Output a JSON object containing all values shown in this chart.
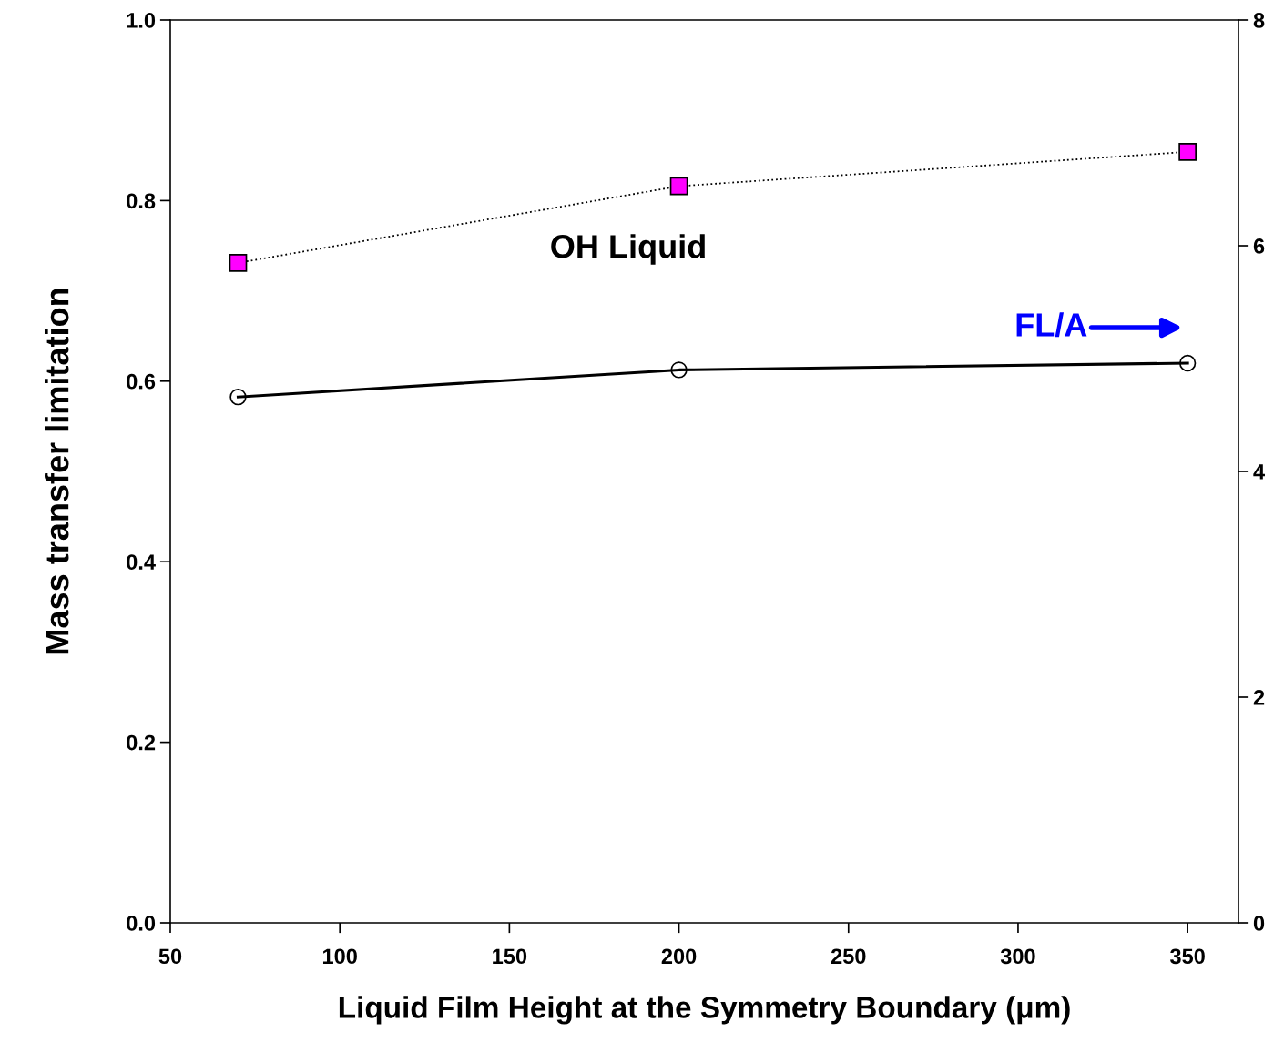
{
  "chart_data": {
    "type": "line",
    "xlabel": "Liquid Film Height at the Symmetry Boundary (μm)",
    "ylabel": "Mass transfer limitation",
    "x": [
      70,
      200,
      350
    ],
    "series": [
      {
        "name": "OH Liquid",
        "color": "#ff00ff",
        "marker": "square",
        "line_style": "dotted",
        "values": [
          0.731,
          0.816,
          0.854
        ]
      },
      {
        "name": "FL/A",
        "color": "#000000",
        "marker": "circle",
        "line_style": "solid",
        "axis": "y2",
        "values": [
          4.66,
          4.9,
          4.96
        ]
      }
    ],
    "xlim": [
      50,
      365
    ],
    "xticks": [
      50,
      100,
      150,
      200,
      250,
      300,
      350
    ],
    "ylim": [
      0,
      1
    ],
    "yticks": [
      {
        "value": 0,
        "label": "0.0"
      },
      {
        "value": 0.2,
        "label": "0.2"
      },
      {
        "value": 0.4,
        "label": "0.4"
      },
      {
        "value": 0.6,
        "label": "0.6"
      },
      {
        "value": 0.8,
        "label": "0.8"
      },
      {
        "value": 1,
        "label": "1.0"
      }
    ],
    "y2lim": [
      0,
      8
    ],
    "y2ticks": [
      0,
      2,
      4,
      6,
      8
    ],
    "grid": false,
    "legend": false
  }
}
